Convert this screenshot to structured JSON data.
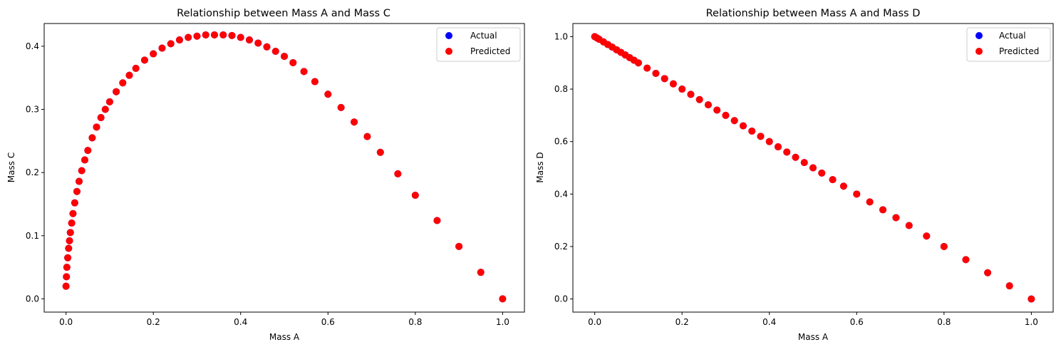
{
  "chart_data": [
    {
      "type": "scatter",
      "title": "Relationship between Mass A and Mass C",
      "xlabel": "Mass A",
      "ylabel": "Mass C",
      "xlim": [
        -0.05,
        1.05
      ],
      "ylim": [
        -0.021,
        0.436
      ],
      "xticks": [
        "0.0",
        "0.2",
        "0.4",
        "0.6",
        "0.8",
        "1.0"
      ],
      "yticks": [
        "0.0",
        "0.1",
        "0.2",
        "0.3",
        "0.4"
      ],
      "grid": false,
      "legend_position": "top-right",
      "series": [
        {
          "name": "Actual",
          "color": "#0000ff",
          "x": [
            0.0,
            0.001,
            0.002,
            0.004,
            0.006,
            0.008,
            0.01,
            0.013,
            0.016,
            0.02,
            0.025,
            0.03,
            0.036,
            0.043,
            0.05,
            0.06,
            0.07,
            0.08,
            0.09,
            0.1,
            0.115,
            0.13,
            0.145,
            0.16,
            0.18,
            0.2,
            0.22,
            0.24,
            0.26,
            0.28,
            0.3,
            0.32,
            0.34,
            0.36,
            0.38,
            0.4,
            0.42,
            0.44,
            0.46,
            0.48,
            0.5,
            0.52,
            0.545,
            0.57,
            0.6,
            0.63,
            0.66,
            0.69,
            0.72,
            0.76,
            0.8,
            0.85,
            0.9,
            0.95,
            1.0
          ],
          "y": [
            0.02,
            0.035,
            0.05,
            0.065,
            0.08,
            0.092,
            0.105,
            0.12,
            0.135,
            0.152,
            0.17,
            0.186,
            0.203,
            0.22,
            0.235,
            0.255,
            0.272,
            0.287,
            0.3,
            0.312,
            0.328,
            0.342,
            0.354,
            0.365,
            0.378,
            0.388,
            0.397,
            0.404,
            0.41,
            0.414,
            0.416,
            0.418,
            0.418,
            0.418,
            0.417,
            0.414,
            0.41,
            0.405,
            0.399,
            0.392,
            0.384,
            0.374,
            0.36,
            0.344,
            0.324,
            0.303,
            0.28,
            0.257,
            0.232,
            0.198,
            0.164,
            0.124,
            0.083,
            0.042,
            0.0
          ]
        },
        {
          "name": "Predicted",
          "color": "#ff0000",
          "x": [
            0.0,
            0.001,
            0.002,
            0.004,
            0.006,
            0.008,
            0.01,
            0.013,
            0.016,
            0.02,
            0.025,
            0.03,
            0.036,
            0.043,
            0.05,
            0.06,
            0.07,
            0.08,
            0.09,
            0.1,
            0.115,
            0.13,
            0.145,
            0.16,
            0.18,
            0.2,
            0.22,
            0.24,
            0.26,
            0.28,
            0.3,
            0.32,
            0.34,
            0.36,
            0.38,
            0.4,
            0.42,
            0.44,
            0.46,
            0.48,
            0.5,
            0.52,
            0.545,
            0.57,
            0.6,
            0.63,
            0.66,
            0.69,
            0.72,
            0.76,
            0.8,
            0.85,
            0.9,
            0.95,
            1.0
          ],
          "y": [
            0.02,
            0.035,
            0.05,
            0.065,
            0.08,
            0.092,
            0.105,
            0.12,
            0.135,
            0.152,
            0.17,
            0.186,
            0.203,
            0.22,
            0.235,
            0.255,
            0.272,
            0.287,
            0.3,
            0.312,
            0.328,
            0.342,
            0.354,
            0.365,
            0.378,
            0.388,
            0.397,
            0.404,
            0.41,
            0.414,
            0.416,
            0.418,
            0.418,
            0.418,
            0.417,
            0.414,
            0.41,
            0.405,
            0.399,
            0.392,
            0.384,
            0.374,
            0.36,
            0.344,
            0.324,
            0.303,
            0.28,
            0.257,
            0.232,
            0.198,
            0.164,
            0.124,
            0.083,
            0.042,
            0.0
          ]
        }
      ]
    },
    {
      "type": "scatter",
      "title": "Relationship between Mass A and Mass D",
      "xlabel": "Mass A",
      "ylabel": "Mass D",
      "xlim": [
        -0.05,
        1.05
      ],
      "ylim": [
        -0.05,
        1.05
      ],
      "xticks": [
        "0.0",
        "0.2",
        "0.4",
        "0.6",
        "0.8",
        "1.0"
      ],
      "yticks": [
        "0.0",
        "0.2",
        "0.4",
        "0.6",
        "0.8",
        "1.0"
      ],
      "grid": false,
      "legend_position": "top-right",
      "series": [
        {
          "name": "Actual",
          "color": "#0000ff",
          "x": [
            0.0,
            0.005,
            0.01,
            0.02,
            0.03,
            0.04,
            0.05,
            0.06,
            0.07,
            0.08,
            0.09,
            0.1,
            0.12,
            0.14,
            0.16,
            0.18,
            0.2,
            0.22,
            0.24,
            0.26,
            0.28,
            0.3,
            0.32,
            0.34,
            0.36,
            0.38,
            0.4,
            0.42,
            0.44,
            0.46,
            0.48,
            0.5,
            0.52,
            0.545,
            0.57,
            0.6,
            0.63,
            0.66,
            0.69,
            0.72,
            0.76,
            0.8,
            0.85,
            0.9,
            0.95,
            1.0
          ],
          "y": [
            1.0,
            0.995,
            0.99,
            0.98,
            0.97,
            0.96,
            0.95,
            0.94,
            0.93,
            0.92,
            0.91,
            0.9,
            0.88,
            0.86,
            0.84,
            0.82,
            0.8,
            0.78,
            0.76,
            0.74,
            0.72,
            0.7,
            0.68,
            0.66,
            0.64,
            0.62,
            0.6,
            0.58,
            0.56,
            0.54,
            0.52,
            0.5,
            0.48,
            0.455,
            0.43,
            0.4,
            0.37,
            0.34,
            0.31,
            0.28,
            0.24,
            0.2,
            0.15,
            0.1,
            0.05,
            0.0
          ]
        },
        {
          "name": "Predicted",
          "color": "#ff0000",
          "x": [
            0.0,
            0.005,
            0.01,
            0.02,
            0.03,
            0.04,
            0.05,
            0.06,
            0.07,
            0.08,
            0.09,
            0.1,
            0.12,
            0.14,
            0.16,
            0.18,
            0.2,
            0.22,
            0.24,
            0.26,
            0.28,
            0.3,
            0.32,
            0.34,
            0.36,
            0.38,
            0.4,
            0.42,
            0.44,
            0.46,
            0.48,
            0.5,
            0.52,
            0.545,
            0.57,
            0.6,
            0.63,
            0.66,
            0.69,
            0.72,
            0.76,
            0.8,
            0.85,
            0.9,
            0.95,
            1.0
          ],
          "y": [
            1.0,
            0.995,
            0.99,
            0.98,
            0.97,
            0.96,
            0.95,
            0.94,
            0.93,
            0.92,
            0.91,
            0.9,
            0.88,
            0.86,
            0.84,
            0.82,
            0.8,
            0.78,
            0.76,
            0.74,
            0.72,
            0.7,
            0.68,
            0.66,
            0.64,
            0.62,
            0.6,
            0.58,
            0.56,
            0.54,
            0.52,
            0.5,
            0.48,
            0.455,
            0.43,
            0.4,
            0.37,
            0.34,
            0.31,
            0.28,
            0.24,
            0.2,
            0.15,
            0.1,
            0.05,
            0.0
          ]
        }
      ]
    }
  ]
}
